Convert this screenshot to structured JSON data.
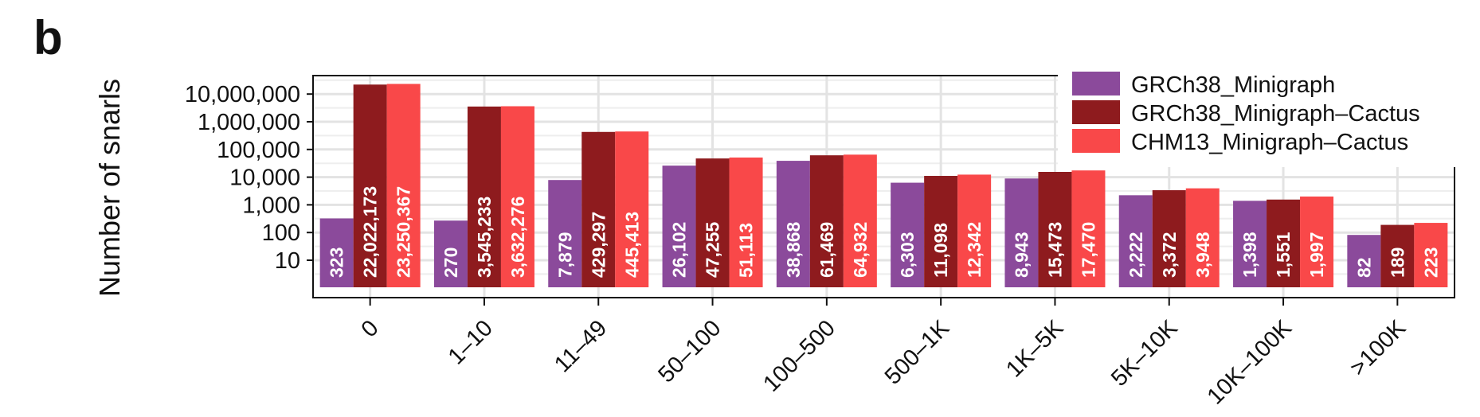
{
  "panel_letter": "b",
  "chart_data": {
    "type": "bar",
    "ylabel": "Number of snarls",
    "xlabel": "",
    "yscale": "log",
    "ylim": [
      1,
      100000000
    ],
    "yticks": [
      10,
      100,
      1000,
      10000,
      100000,
      1000000,
      10000000
    ],
    "ytick_labels": [
      "10",
      "100",
      "1,000",
      "10,000",
      "100,000",
      "1,000,000",
      "10,000,000"
    ],
    "grid": true,
    "legend_position": "top-right",
    "categories": [
      "0",
      "1–10",
      "11–49",
      "50–100",
      "100–500",
      "500–1K",
      "1K–5K",
      "5K–10K",
      "10K–100K",
      ">100K"
    ],
    "series": [
      {
        "name": "GRCh38_Minigraph",
        "color": "#8b4a9b",
        "values": [
          323,
          270,
          7879,
          26102,
          38868,
          6303,
          8943,
          2222,
          1398,
          82
        ],
        "labels": [
          "323",
          "270",
          "7,879",
          "26,102",
          "38,868",
          "6,303",
          "8,943",
          "2,222",
          "1,398",
          "82"
        ]
      },
      {
        "name": "GRCh38_Minigraph–Cactus",
        "color": "#8e1b1e",
        "values": [
          22022173,
          3545233,
          429297,
          47255,
          61469,
          11098,
          15473,
          3372,
          1551,
          189
        ],
        "labels": [
          "22,022,173",
          "3,545,233",
          "429,297",
          "47,255",
          "61,469",
          "11,098",
          "15,473",
          "3,372",
          "1,551",
          "189"
        ]
      },
      {
        "name": "CHM13_Minigraph–Cactus",
        "color": "#f94849",
        "values": [
          23250367,
          3632276,
          445413,
          51113,
          64932,
          12342,
          17470,
          3948,
          1997,
          223
        ],
        "labels": [
          "23,250,367",
          "3,632,276",
          "445,413",
          "51,113",
          "64,932",
          "12,342",
          "17,470",
          "3,948",
          "1,997",
          "223"
        ]
      }
    ]
  }
}
